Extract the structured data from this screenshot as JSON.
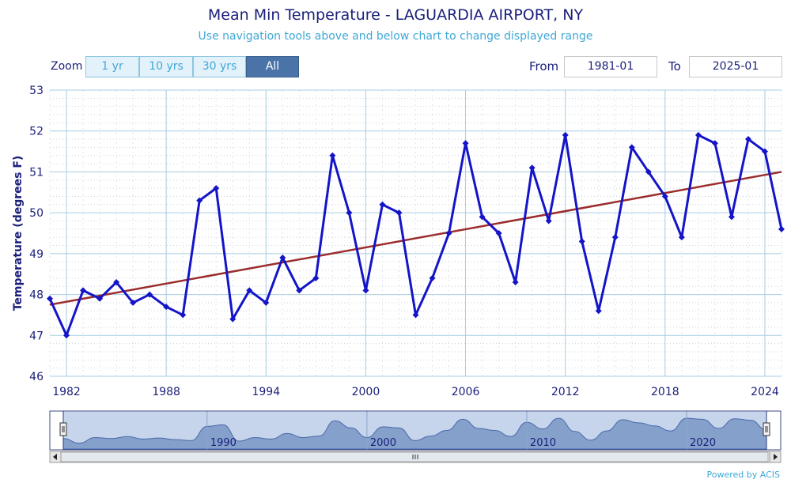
{
  "header": {
    "title": "Mean Min Temperature - LAGUARDIA AIRPORT, NY",
    "subtitle": "Use navigation tools above and below chart to change displayed range"
  },
  "zoom": {
    "label": "Zoom",
    "buttons": [
      "1 yr",
      "10 yrs",
      "30 yrs",
      "All"
    ],
    "active": "All"
  },
  "range": {
    "from_label": "From",
    "from_value": "1981-01",
    "to_label": "To",
    "to_value": "2025-01"
  },
  "colors": {
    "series": "#1414c8",
    "trend": "#9b2d2d",
    "navigator_fill": "#6f8fc0",
    "axis_text": "#1a1f7a"
  },
  "chart_data": {
    "type": "line",
    "title": "Mean Min Temperature - LAGUARDIA AIRPORT, NY",
    "ylabel": "Temperature (degrees F)",
    "xlabel": "",
    "ylim": [
      46,
      53
    ],
    "xlim": [
      1981,
      2025
    ],
    "xticks": [
      1982,
      1988,
      1994,
      2000,
      2006,
      2012,
      2018,
      2024
    ],
    "yticks": [
      46,
      47,
      48,
      49,
      50,
      51,
      52,
      53
    ],
    "series": [
      {
        "name": "Mean Min Temperature",
        "x": [
          1981,
          1982,
          1983,
          1984,
          1985,
          1986,
          1987,
          1988,
          1989,
          1990,
          1991,
          1992,
          1993,
          1994,
          1995,
          1996,
          1997,
          1998,
          1999,
          2000,
          2001,
          2002,
          2003,
          2004,
          2005,
          2006,
          2007,
          2008,
          2009,
          2010,
          2011,
          2012,
          2013,
          2014,
          2015,
          2016,
          2017,
          2018,
          2019,
          2020,
          2021,
          2022,
          2023,
          2024,
          2025
        ],
        "values": [
          47.9,
          47.0,
          48.1,
          47.9,
          48.3,
          47.8,
          48.0,
          47.7,
          47.5,
          50.3,
          50.6,
          47.4,
          48.1,
          47.8,
          48.9,
          48.1,
          48.4,
          51.4,
          50.0,
          48.1,
          50.2,
          50.0,
          47.5,
          48.4,
          49.5,
          51.7,
          49.9,
          49.5,
          48.3,
          51.1,
          49.8,
          51.9,
          49.3,
          47.6,
          49.4,
          51.6,
          51.0,
          50.4,
          49.4,
          51.9,
          51.7,
          49.9,
          51.8,
          51.5,
          49.6
        ]
      },
      {
        "name": "Trend",
        "x": [
          1981,
          2025
        ],
        "values": [
          47.75,
          51.0
        ]
      }
    ],
    "navigator": {
      "tick_labels": [
        "1990",
        "2000",
        "2010",
        "2020"
      ],
      "tick_years": [
        1990,
        2000,
        2010,
        2020
      ],
      "range": [
        1981,
        2025
      ]
    }
  },
  "footer": {
    "powered_by": "Powered by ACIS"
  }
}
